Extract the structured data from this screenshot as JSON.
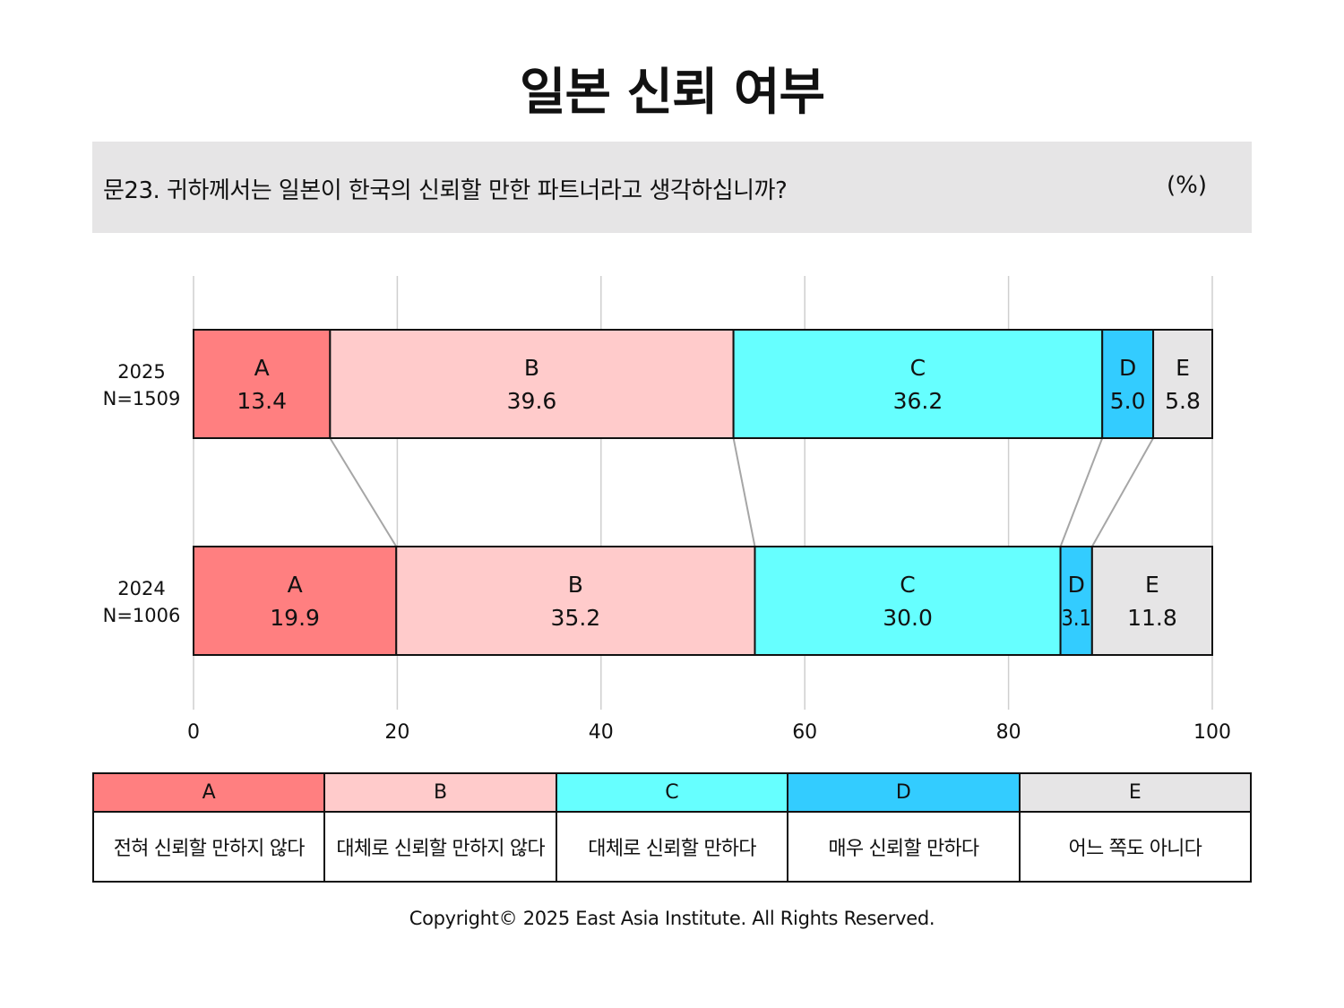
{
  "title": "일본 신뢰 여부",
  "question": "문23. 귀하께서는 일본이 한국의 신뢰할 만한 파트너라고 생각하십니까?",
  "unit": "(%)",
  "copyright": "Copyright© 2025 East Asia Institute. All Rights Reserved.",
  "colors": {
    "A": "#ff7f80",
    "B": "#ffcbcb",
    "C": "#66ffff",
    "D": "#33ccff",
    "E": "#e6e5e6"
  },
  "chart_data": {
    "type": "bar",
    "orientation": "horizontal-stacked",
    "xlim": [
      0,
      100
    ],
    "xticks": [
      0,
      20,
      40,
      60,
      80,
      100
    ],
    "grid": true,
    "categories": [
      {
        "year": "2025",
        "n": "N=1509"
      },
      {
        "year": "2024",
        "n": "N=1006"
      }
    ],
    "series": [
      {
        "name": "A",
        "values": [
          13.4,
          19.9
        ]
      },
      {
        "name": "B",
        "values": [
          39.6,
          35.2
        ]
      },
      {
        "name": "C",
        "values": [
          36.2,
          30.0
        ]
      },
      {
        "name": "D",
        "values": [
          5.0,
          3.1
        ]
      },
      {
        "name": "E",
        "values": [
          5.8,
          11.8
        ]
      }
    ]
  },
  "legend": [
    {
      "key": "A",
      "label": "전혀 신뢰할 만하지 않다"
    },
    {
      "key": "B",
      "label": "대체로 신뢰할 만하지 않다"
    },
    {
      "key": "C",
      "label": "대체로 신뢰할 만하다"
    },
    {
      "key": "D",
      "label": "매우 신뢰할 만하다"
    },
    {
      "key": "E",
      "label": "어느 쪽도 아니다"
    }
  ]
}
